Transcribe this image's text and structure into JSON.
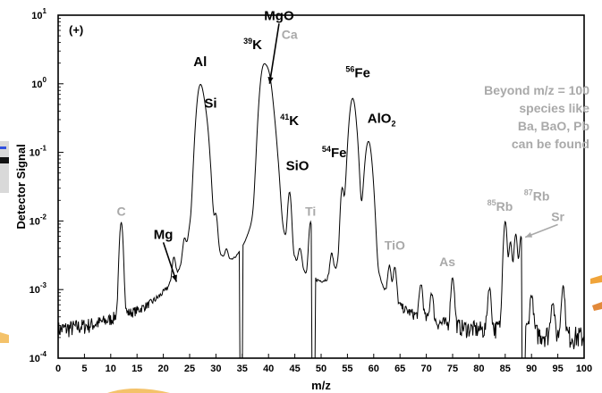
{
  "chart_data": {
    "type": "line",
    "title": "",
    "polarity_label": "(+)",
    "xlabel": "m/z",
    "ylabel": "Detector Signal",
    "xlim": [
      0,
      100
    ],
    "ylim_log10": [
      -4,
      1
    ],
    "y_scale": "log",
    "x_ticks": [
      "0",
      "5",
      "10",
      "15",
      "20",
      "25",
      "30",
      "35",
      "40",
      "45",
      "50",
      "55",
      "60",
      "65",
      "70",
      "75",
      "80",
      "85",
      "90",
      "95",
      "100"
    ],
    "y_ticks": [
      {
        "base": "10",
        "exp": "1",
        "value": 10
      },
      {
        "base": "10",
        "exp": "0",
        "value": 1
      },
      {
        "base": "10",
        "exp": "-1",
        "value": 0.1
      },
      {
        "base": "10",
        "exp": "-2",
        "value": 0.01
      },
      {
        "base": "10",
        "exp": "-3",
        "value": 0.001
      },
      {
        "base": "10",
        "exp": "-4",
        "value": 0.0001
      }
    ],
    "grid": false,
    "series": [
      {
        "color": "#000000",
        "peaks": [
          {
            "x": 12,
            "y": 0.009
          },
          {
            "x": 22,
            "y": 0.0015
          },
          {
            "x": 24,
            "y": 0.0025
          },
          {
            "x": 25,
            "y": 0.0022
          },
          {
            "x": 26,
            "y": 0.005
          },
          {
            "x": 27,
            "y": 0.9
          },
          {
            "x": 28,
            "y": 0.28
          },
          {
            "x": 30,
            "y": 0.008
          },
          {
            "x": 32,
            "y": 0.0012
          },
          {
            "x": 38,
            "y": 0.011
          },
          {
            "x": 39,
            "y": 1.6
          },
          {
            "x": 40,
            "y": 1.2
          },
          {
            "x": 41,
            "y": 0.18
          },
          {
            "x": 42,
            "y": 0.0035
          },
          {
            "x": 44,
            "y": 0.022
          },
          {
            "x": 46,
            "y": 0.0018
          },
          {
            "x": 48,
            "y": 0.008
          },
          {
            "x": 52,
            "y": 0.0017
          },
          {
            "x": 54,
            "y": 0.026
          },
          {
            "x": 56,
            "y": 0.6
          },
          {
            "x": 57,
            "y": 0.011
          },
          {
            "x": 59,
            "y": 0.14
          },
          {
            "x": 60,
            "y": 0.0025
          },
          {
            "x": 63,
            "y": 0.0014
          },
          {
            "x": 64,
            "y": 0.0014
          },
          {
            "x": 69,
            "y": 0.0008
          },
          {
            "x": 71,
            "y": 0.00055
          },
          {
            "x": 75,
            "y": 0.0012
          },
          {
            "x": 82,
            "y": 0.0008
          },
          {
            "x": 85,
            "y": 0.0095
          },
          {
            "x": 86,
            "y": 0.0045
          },
          {
            "x": 87,
            "y": 0.006
          },
          {
            "x": 88,
            "y": 0.0055
          },
          {
            "x": 90,
            "y": 0.0006
          },
          {
            "x": 94,
            "y": 0.00045
          },
          {
            "x": 96,
            "y": 0.0009
          }
        ],
        "dips": [
          {
            "x": 34.8,
            "y": 0.0001
          },
          {
            "x": 48.5,
            "y": 0.0001
          },
          {
            "x": 88.5,
            "y": 0.0001
          }
        ]
      }
    ],
    "annotations": [
      {
        "id": "c",
        "text": "C",
        "color": "gray",
        "x": 12,
        "y": 0.012
      },
      {
        "id": "mg",
        "text": "Mg",
        "color": "black",
        "x": 20,
        "y": 0.0055,
        "arrow_to": {
          "x": 22.5,
          "y": 0.0013
        }
      },
      {
        "id": "al",
        "text": "Al",
        "color": "black",
        "x": 27,
        "y": 1.8
      },
      {
        "id": "si",
        "text": "Si",
        "color": "black",
        "x": 29,
        "y": 0.45
      },
      {
        "id": "k39",
        "sup": "39",
        "text": "K",
        "color": "black",
        "x": 37,
        "y": 3.2
      },
      {
        "id": "mgo",
        "text": "MgO",
        "color": "black",
        "x": 42,
        "y": 8.5,
        "arrow_to": {
          "x": 40.2,
          "y": 1.0
        }
      },
      {
        "id": "ca",
        "text": "Ca",
        "color": "gray",
        "x": 44,
        "y": 4.5
      },
      {
        "id": "k41",
        "sup": "41",
        "text": "K",
        "color": "black",
        "x": 44,
        "y": 0.25
      },
      {
        "id": "sio",
        "text": "SiO",
        "color": "black",
        "x": 45.5,
        "y": 0.055
      },
      {
        "id": "ti",
        "text": "Ti",
        "color": "gray",
        "x": 48,
        "y": 0.012
      },
      {
        "id": "fe54",
        "sup": "54",
        "text": "Fe",
        "color": "black",
        "x": 52.5,
        "y": 0.085
      },
      {
        "id": "fe56",
        "sup": "56",
        "text": "Fe",
        "color": "black",
        "x": 57,
        "y": 1.25
      },
      {
        "id": "alo2",
        "text": "AlO",
        "sub": "2",
        "color": "black",
        "x": 61.5,
        "y": 0.27
      },
      {
        "id": "tio",
        "text": "TiO",
        "color": "gray",
        "x": 64,
        "y": 0.0038
      },
      {
        "id": "as",
        "text": "As",
        "color": "gray",
        "x": 74,
        "y": 0.0022
      },
      {
        "id": "rb85",
        "sup": "85",
        "text": "Rb",
        "color": "gray",
        "x": 84,
        "y": 0.014
      },
      {
        "id": "rb87",
        "sup": "87",
        "text": "Rb",
        "color": "gray",
        "x": 91,
        "y": 0.02
      },
      {
        "id": "sr",
        "text": "Sr",
        "color": "gray",
        "x": 95,
        "y": 0.01,
        "arrow_to": {
          "x": 88.8,
          "y": 0.0058
        }
      }
    ],
    "note_lines": [
      "Beyond m/z = 100",
      "species like",
      "Ba, BaO, Pb",
      "can be found"
    ],
    "colors": {
      "line": "#000000",
      "label_black": "#000000",
      "label_gray": "#a9a9a9"
    }
  }
}
